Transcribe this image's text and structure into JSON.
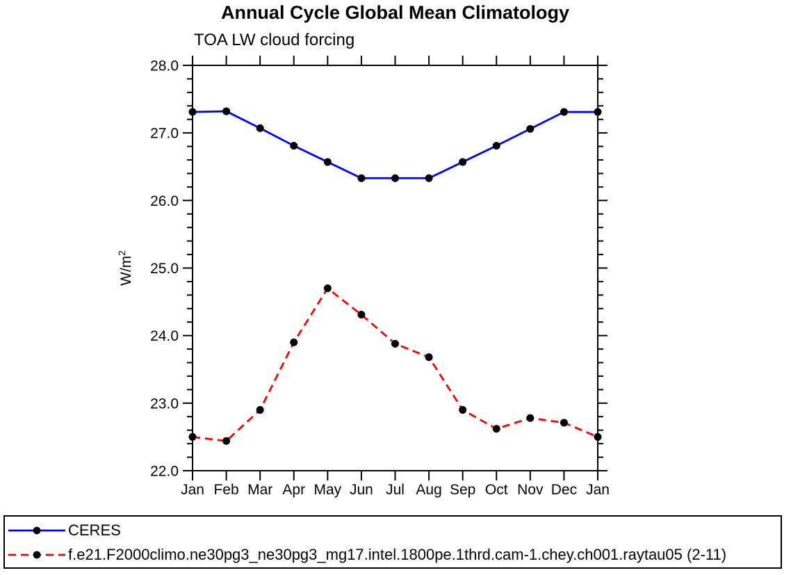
{
  "title": "Annual Cycle Global Mean Climatology",
  "subtitle": "TOA LW cloud forcing",
  "colors": {
    "axis": "#000000",
    "ceres_line": "#0000ff",
    "model_line": "#ff0000",
    "marker": "#000000",
    "background": "#ffffff"
  },
  "chart_data": {
    "type": "line",
    "title": "Annual Cycle Global Mean Climatology",
    "subtitle": "TOA LW cloud forcing",
    "xlabel": "",
    "ylabel": "W/m2",
    "ylabel_base": "W/m",
    "ylabel_exponent": "2",
    "x_labels": [
      "Jan",
      "Feb",
      "Mar",
      "Apr",
      "May",
      "Jun",
      "Jul",
      "Aug",
      "Sep",
      "Oct",
      "Nov",
      "Dec",
      "Jan"
    ],
    "ylim": [
      22.0,
      28.0
    ],
    "y_major_step": 1.0,
    "y_minor_step": 0.2,
    "y_tick_labels": [
      "22.0",
      "23.0",
      "24.0",
      "25.0",
      "26.0",
      "27.0",
      "28.0"
    ],
    "grid": false,
    "legend_position": "bottom-box",
    "series": [
      {
        "name": "CERES",
        "color": "#0000ff",
        "line_style": "solid",
        "marker": "circle",
        "marker_color": "#000000",
        "values": [
          27.31,
          27.32,
          27.07,
          26.81,
          26.57,
          26.33,
          26.33,
          26.33,
          26.57,
          26.81,
          27.06,
          27.31,
          27.31
        ]
      },
      {
        "name": "f.e21.F2000climo.ne30pg3_ne30pg3_mg17.intel.1800pe.1thrd.cam-1.chey.ch001.raytau05 (2-11)",
        "color": "#ff0000",
        "line_style": "dashed",
        "marker": "circle",
        "marker_color": "#000000",
        "values": [
          22.5,
          22.44,
          22.9,
          23.9,
          24.7,
          24.31,
          23.88,
          23.68,
          22.9,
          22.62,
          22.78,
          22.71,
          22.5
        ]
      }
    ]
  }
}
